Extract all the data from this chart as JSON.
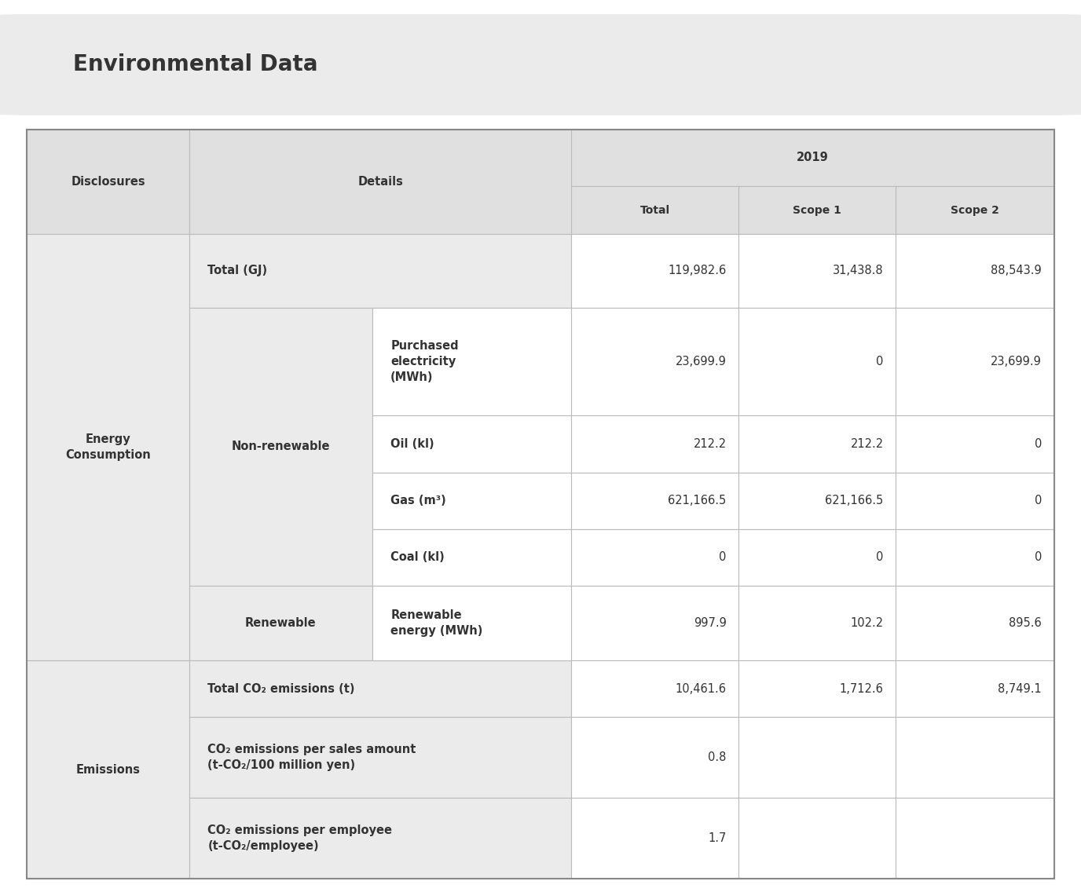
{
  "title": "Environmental Data",
  "title_fontsize": 20,
  "title_fontweight": "bold",
  "title_bg_color": "#ebebeb",
  "bg_color": "#ffffff",
  "border_color": "#bbbbbb",
  "header_bg": "#e0e0e0",
  "cell_bg_gray": "#ebebeb",
  "cell_bg_white": "#ffffff",
  "year_header": "2019",
  "col_headers": [
    "Total",
    "Scope 1",
    "Scope 2"
  ],
  "disclosures_col": "Disclosures",
  "details_col": "Details",
  "text_color": "#333333",
  "value_data": [
    [
      "119,982.6",
      "31,438.8",
      "88,543.9"
    ],
    [
      "23,699.9",
      "0",
      "23,699.9"
    ],
    [
      "212.2",
      "212.2",
      "0"
    ],
    [
      "621,166.5",
      "621,166.5",
      "0"
    ],
    [
      "0",
      "0",
      "0"
    ],
    [
      "997.9",
      "102.2",
      "895.6"
    ],
    [
      "10,461.6",
      "1,712.6",
      "8,749.1"
    ],
    [
      "0.8",
      "",
      ""
    ],
    [
      "1.7",
      "",
      ""
    ]
  ],
  "level3_texts": [
    "Purchased\nelectricity\n(MWh)",
    "Oil (kl)",
    "Gas (m³)",
    "Coal (kl)",
    "Renewable\nenergy (MWh)"
  ],
  "emissions_details": [
    "Total CO₂ emissions (t)",
    "CO₂ emissions per sales amount\n(t-CO₂/100 million yen)",
    "CO₂ emissions per employee\n(t-CO₂/employee)"
  ]
}
